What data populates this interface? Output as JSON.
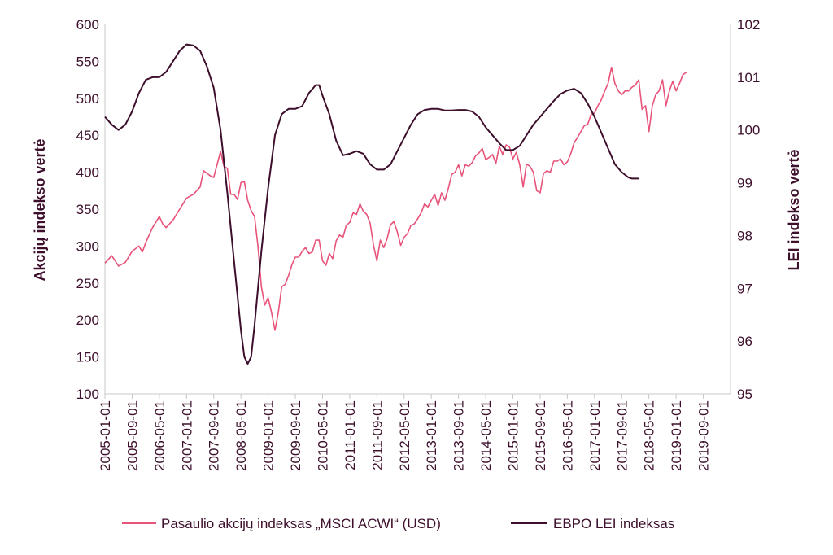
{
  "chart_data": {
    "type": "line",
    "ylabel": "Akcijų indekso vertė",
    "y2label": "LEI indekso vertė",
    "ylim": [
      100,
      600
    ],
    "y2lim": [
      95,
      102
    ],
    "yticks": [
      100,
      150,
      200,
      250,
      300,
      350,
      400,
      450,
      500,
      550,
      600
    ],
    "y2ticks": [
      95,
      96,
      97,
      98,
      99,
      100,
      101,
      102
    ],
    "x_tick_labels": [
      "2005-01-01",
      "2005-09-01",
      "2006-05-01",
      "2007-01-01",
      "2007-09-01",
      "2008-05-01",
      "2009-01-01",
      "2009-09-01",
      "2010-05-01",
      "2011-01-01",
      "2011-09-01",
      "2012-05-01",
      "2013-01-01",
      "2013-09-01",
      "2014-05-01",
      "2015-01-01",
      "2015-09-01",
      "2016-05-01",
      "2017-01-01",
      "2017-09-01",
      "2018-05-01",
      "2019-01-01",
      "2019-09-01"
    ],
    "x_range_months": [
      0,
      184
    ],
    "series": [
      {
        "name": "Pasaulio akcijų indeksas „MSCI ACWI“ (USD)",
        "axis": "left",
        "color": "#e8537a",
        "points": [
          [
            0,
            277
          ],
          [
            2,
            287
          ],
          [
            4,
            273
          ],
          [
            6,
            278
          ],
          [
            8,
            293
          ],
          [
            10,
            300
          ],
          [
            11,
            292
          ],
          [
            12,
            305
          ],
          [
            14,
            325
          ],
          [
            16,
            340
          ],
          [
            17,
            330
          ],
          [
            18,
            325
          ],
          [
            20,
            335
          ],
          [
            22,
            350
          ],
          [
            24,
            365
          ],
          [
            26,
            370
          ],
          [
            28,
            380
          ],
          [
            29,
            402
          ],
          [
            31,
            395
          ],
          [
            32,
            393
          ],
          [
            34,
            428
          ],
          [
            35,
            408
          ],
          [
            36,
            405
          ],
          [
            37,
            370
          ],
          [
            38,
            370
          ],
          [
            39,
            363
          ],
          [
            40,
            386
          ],
          [
            41,
            387
          ],
          [
            42,
            362
          ],
          [
            43,
            348
          ],
          [
            44,
            340
          ],
          [
            45,
            300
          ],
          [
            46,
            245
          ],
          [
            47,
            220
          ],
          [
            48,
            230
          ],
          [
            49,
            210
          ],
          [
            50,
            186
          ],
          [
            51,
            210
          ],
          [
            52,
            245
          ],
          [
            53,
            248
          ],
          [
            54,
            260
          ],
          [
            55,
            275
          ],
          [
            56,
            285
          ],
          [
            57,
            285
          ],
          [
            58,
            293
          ],
          [
            59,
            298
          ],
          [
            60,
            290
          ],
          [
            61,
            292
          ],
          [
            62,
            308
          ],
          [
            63,
            308
          ],
          [
            64,
            280
          ],
          [
            65,
            274
          ],
          [
            66,
            290
          ],
          [
            67,
            283
          ],
          [
            68,
            307
          ],
          [
            69,
            315
          ],
          [
            70,
            312
          ],
          [
            71,
            328
          ],
          [
            72,
            332
          ],
          [
            73,
            345
          ],
          [
            74,
            343
          ],
          [
            75,
            357
          ],
          [
            76,
            347
          ],
          [
            77,
            343
          ],
          [
            78,
            331
          ],
          [
            79,
            301
          ],
          [
            80,
            280
          ],
          [
            81,
            308
          ],
          [
            82,
            298
          ],
          [
            83,
            310
          ],
          [
            84,
            329
          ],
          [
            85,
            333
          ],
          [
            86,
            319
          ],
          [
            87,
            301
          ],
          [
            88,
            312
          ],
          [
            89,
            317
          ],
          [
            90,
            328
          ],
          [
            91,
            330
          ],
          [
            92,
            337
          ],
          [
            93,
            345
          ],
          [
            94,
            357
          ],
          [
            95,
            353
          ],
          [
            96,
            362
          ],
          [
            97,
            370
          ],
          [
            98,
            355
          ],
          [
            99,
            372
          ],
          [
            100,
            362
          ],
          [
            101,
            378
          ],
          [
            102,
            397
          ],
          [
            103,
            400
          ],
          [
            104,
            410
          ],
          [
            105,
            395
          ],
          [
            106,
            410
          ],
          [
            107,
            408
          ],
          [
            108,
            413
          ],
          [
            109,
            422
          ],
          [
            110,
            426
          ],
          [
            111,
            432
          ],
          [
            112,
            417
          ],
          [
            113,
            420
          ],
          [
            114,
            424
          ],
          [
            115,
            412
          ],
          [
            116,
            435
          ],
          [
            117,
            424
          ],
          [
            118,
            437
          ],
          [
            119,
            434
          ],
          [
            120,
            418
          ],
          [
            121,
            427
          ],
          [
            122,
            410
          ],
          [
            123,
            380
          ],
          [
            124,
            411
          ],
          [
            125,
            408
          ],
          [
            126,
            400
          ],
          [
            127,
            375
          ],
          [
            128,
            372
          ],
          [
            129,
            398
          ],
          [
            130,
            402
          ],
          [
            131,
            400
          ],
          [
            132,
            415
          ],
          [
            133,
            415
          ],
          [
            134,
            418
          ],
          [
            135,
            410
          ],
          [
            136,
            414
          ],
          [
            137,
            425
          ],
          [
            138,
            440
          ],
          [
            139,
            447
          ],
          [
            140,
            455
          ],
          [
            141,
            463
          ],
          [
            142,
            465
          ],
          [
            143,
            478
          ],
          [
            144,
            480
          ],
          [
            145,
            490
          ],
          [
            146,
            498
          ],
          [
            147,
            510
          ],
          [
            148,
            520
          ],
          [
            149,
            542
          ],
          [
            150,
            520
          ],
          [
            151,
            510
          ],
          [
            152,
            505
          ],
          [
            153,
            510
          ],
          [
            154,
            510
          ],
          [
            155,
            515
          ],
          [
            156,
            518
          ],
          [
            157,
            525
          ],
          [
            158,
            485
          ],
          [
            159,
            490
          ],
          [
            160,
            455
          ],
          [
            161,
            490
          ],
          [
            162,
            505
          ],
          [
            163,
            510
          ],
          [
            164,
            525
          ],
          [
            165,
            490
          ],
          [
            166,
            510
          ],
          [
            167,
            523
          ],
          [
            168,
            510
          ],
          [
            169,
            520
          ],
          [
            170,
            532
          ],
          [
            171,
            535
          ]
        ]
      },
      {
        "name": "EBPO LEI indeksas",
        "axis": "right",
        "color": "#3d0f2c",
        "points": [
          [
            0,
            100.25
          ],
          [
            2,
            100.1
          ],
          [
            4,
            100.0
          ],
          [
            6,
            100.1
          ],
          [
            8,
            100.35
          ],
          [
            10,
            100.7
          ],
          [
            12,
            100.95
          ],
          [
            14,
            101.0
          ],
          [
            16,
            101.0
          ],
          [
            18,
            101.1
          ],
          [
            20,
            101.3
          ],
          [
            22,
            101.5
          ],
          [
            24,
            101.62
          ],
          [
            26,
            101.6
          ],
          [
            28,
            101.5
          ],
          [
            30,
            101.2
          ],
          [
            32,
            100.8
          ],
          [
            34,
            100.0
          ],
          [
            36,
            98.8
          ],
          [
            38,
            97.5
          ],
          [
            40,
            96.2
          ],
          [
            41,
            95.7
          ],
          [
            42,
            95.57
          ],
          [
            43,
            95.7
          ],
          [
            44,
            96.3
          ],
          [
            46,
            97.7
          ],
          [
            48,
            98.9
          ],
          [
            50,
            99.9
          ],
          [
            52,
            100.3
          ],
          [
            54,
            100.4
          ],
          [
            56,
            100.4
          ],
          [
            58,
            100.45
          ],
          [
            60,
            100.7
          ],
          [
            62,
            100.85
          ],
          [
            63,
            100.85
          ],
          [
            64,
            100.65
          ],
          [
            66,
            100.3
          ],
          [
            68,
            99.8
          ],
          [
            70,
            99.52
          ],
          [
            72,
            99.55
          ],
          [
            74,
            99.6
          ],
          [
            76,
            99.55
          ],
          [
            78,
            99.35
          ],
          [
            80,
            99.25
          ],
          [
            82,
            99.25
          ],
          [
            84,
            99.35
          ],
          [
            86,
            99.6
          ],
          [
            88,
            99.85
          ],
          [
            90,
            100.1
          ],
          [
            92,
            100.3
          ],
          [
            94,
            100.38
          ],
          [
            96,
            100.4
          ],
          [
            98,
            100.4
          ],
          [
            100,
            100.37
          ],
          [
            102,
            100.37
          ],
          [
            104,
            100.38
          ],
          [
            106,
            100.38
          ],
          [
            108,
            100.35
          ],
          [
            110,
            100.25
          ],
          [
            112,
            100.05
          ],
          [
            114,
            99.9
          ],
          [
            116,
            99.75
          ],
          [
            118,
            99.62
          ],
          [
            120,
            99.62
          ],
          [
            122,
            99.7
          ],
          [
            124,
            99.9
          ],
          [
            126,
            100.1
          ],
          [
            128,
            100.25
          ],
          [
            130,
            100.4
          ],
          [
            132,
            100.55
          ],
          [
            134,
            100.68
          ],
          [
            136,
            100.75
          ],
          [
            138,
            100.78
          ],
          [
            140,
            100.7
          ],
          [
            142,
            100.5
          ],
          [
            144,
            100.25
          ],
          [
            146,
            99.95
          ],
          [
            148,
            99.65
          ],
          [
            150,
            99.35
          ],
          [
            152,
            99.2
          ],
          [
            154,
            99.1
          ],
          [
            155,
            99.08
          ],
          [
            156,
            99.08
          ],
          [
            157,
            99.08
          ]
        ]
      }
    ]
  }
}
